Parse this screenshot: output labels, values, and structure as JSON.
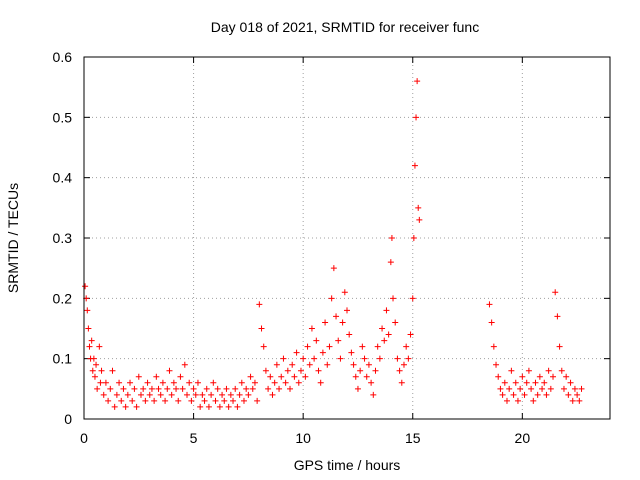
{
  "chart_data": {
    "type": "scatter",
    "title": "Day 018 of 2021, SRMTID for receiver func",
    "xlabel": "GPS time / hours",
    "ylabel": "SRMTID / TECUs",
    "xlim": [
      0,
      24
    ],
    "ylim": [
      0,
      0.6
    ],
    "xticks": [
      0,
      5,
      10,
      15,
      20
    ],
    "yticks": [
      0,
      0.1,
      0.2,
      0.3,
      0.4,
      0.5,
      0.6
    ],
    "xtick_labels": [
      "0",
      "5",
      "10",
      "15",
      "20"
    ],
    "ytick_labels": [
      "0",
      "0.1",
      "0.2",
      "0.3",
      "0.4",
      "0.5",
      "0.6"
    ],
    "grid": true,
    "marker": "+",
    "color": "#ff0000",
    "series": [
      {
        "name": "SRMTID",
        "points": [
          [
            0.05,
            0.22
          ],
          [
            0.1,
            0.2
          ],
          [
            0.15,
            0.18
          ],
          [
            0.2,
            0.15
          ],
          [
            0.25,
            0.12
          ],
          [
            0.3,
            0.1
          ],
          [
            0.35,
            0.13
          ],
          [
            0.4,
            0.08
          ],
          [
            0.45,
            0.1
          ],
          [
            0.5,
            0.07
          ],
          [
            0.55,
            0.09
          ],
          [
            0.6,
            0.05
          ],
          [
            0.7,
            0.12
          ],
          [
            0.75,
            0.06
          ],
          [
            0.8,
            0.08
          ],
          [
            0.9,
            0.04
          ],
          [
            1.0,
            0.06
          ],
          [
            1.1,
            0.03
          ],
          [
            1.2,
            0.05
          ],
          [
            1.3,
            0.08
          ],
          [
            1.4,
            0.02
          ],
          [
            1.5,
            0.04
          ],
          [
            1.6,
            0.06
          ],
          [
            1.7,
            0.03
          ],
          [
            1.8,
            0.05
          ],
          [
            1.9,
            0.02
          ],
          [
            2.0,
            0.04
          ],
          [
            2.1,
            0.06
          ],
          [
            2.2,
            0.03
          ],
          [
            2.3,
            0.05
          ],
          [
            2.4,
            0.02
          ],
          [
            2.5,
            0.07
          ],
          [
            2.6,
            0.04
          ],
          [
            2.7,
            0.05
          ],
          [
            2.8,
            0.03
          ],
          [
            2.9,
            0.06
          ],
          [
            3.0,
            0.04
          ],
          [
            3.1,
            0.05
          ],
          [
            3.2,
            0.03
          ],
          [
            3.3,
            0.07
          ],
          [
            3.4,
            0.05
          ],
          [
            3.5,
            0.04
          ],
          [
            3.6,
            0.06
          ],
          [
            3.7,
            0.03
          ],
          [
            3.8,
            0.05
          ],
          [
            3.9,
            0.08
          ],
          [
            4.0,
            0.04
          ],
          [
            4.1,
            0.06
          ],
          [
            4.2,
            0.05
          ],
          [
            4.3,
            0.03
          ],
          [
            4.4,
            0.07
          ],
          [
            4.5,
            0.05
          ],
          [
            4.6,
            0.09
          ],
          [
            4.7,
            0.04
          ],
          [
            4.8,
            0.06
          ],
          [
            4.9,
            0.03
          ],
          [
            5.0,
            0.05
          ],
          [
            5.1,
            0.04
          ],
          [
            5.2,
            0.06
          ],
          [
            5.3,
            0.02
          ],
          [
            5.4,
            0.04
          ],
          [
            5.5,
            0.03
          ],
          [
            5.6,
            0.05
          ],
          [
            5.7,
            0.02
          ],
          [
            5.8,
            0.04
          ],
          [
            5.9,
            0.06
          ],
          [
            6.0,
            0.03
          ],
          [
            6.1,
            0.05
          ],
          [
            6.2,
            0.02
          ],
          [
            6.3,
            0.04
          ],
          [
            6.4,
            0.03
          ],
          [
            6.5,
            0.05
          ],
          [
            6.6,
            0.02
          ],
          [
            6.7,
            0.04
          ],
          [
            6.8,
            0.03
          ],
          [
            6.9,
            0.05
          ],
          [
            7.0,
            0.02
          ],
          [
            7.1,
            0.04
          ],
          [
            7.2,
            0.06
          ],
          [
            7.3,
            0.03
          ],
          [
            7.4,
            0.05
          ],
          [
            7.5,
            0.04
          ],
          [
            7.6,
            0.07
          ],
          [
            7.7,
            0.05
          ],
          [
            7.8,
            0.06
          ],
          [
            7.9,
            0.03
          ],
          [
            8.0,
            0.19
          ],
          [
            8.1,
            0.15
          ],
          [
            8.2,
            0.12
          ],
          [
            8.3,
            0.08
          ],
          [
            8.4,
            0.05
          ],
          [
            8.5,
            0.07
          ],
          [
            8.6,
            0.04
          ],
          [
            8.7,
            0.06
          ],
          [
            8.8,
            0.09
          ],
          [
            8.9,
            0.05
          ],
          [
            9.0,
            0.07
          ],
          [
            9.1,
            0.1
          ],
          [
            9.2,
            0.06
          ],
          [
            9.3,
            0.08
          ],
          [
            9.4,
            0.05
          ],
          [
            9.5,
            0.09
          ],
          [
            9.6,
            0.07
          ],
          [
            9.7,
            0.11
          ],
          [
            9.8,
            0.06
          ],
          [
            9.9,
            0.08
          ],
          [
            10.0,
            0.1
          ],
          [
            10.1,
            0.07
          ],
          [
            10.2,
            0.12
          ],
          [
            10.3,
            0.09
          ],
          [
            10.4,
            0.15
          ],
          [
            10.5,
            0.1
          ],
          [
            10.6,
            0.13
          ],
          [
            10.7,
            0.08
          ],
          [
            10.8,
            0.06
          ],
          [
            10.9,
            0.11
          ],
          [
            11.0,
            0.16
          ],
          [
            11.1,
            0.09
          ],
          [
            11.2,
            0.12
          ],
          [
            11.3,
            0.2
          ],
          [
            11.4,
            0.25
          ],
          [
            11.5,
            0.17
          ],
          [
            11.6,
            0.13
          ],
          [
            11.7,
            0.1
          ],
          [
            11.8,
            0.16
          ],
          [
            11.9,
            0.21
          ],
          [
            12.0,
            0.18
          ],
          [
            12.1,
            0.14
          ],
          [
            12.2,
            0.11
          ],
          [
            12.3,
            0.09
          ],
          [
            12.4,
            0.07
          ],
          [
            12.5,
            0.05
          ],
          [
            12.6,
            0.08
          ],
          [
            12.7,
            0.12
          ],
          [
            12.8,
            0.1
          ],
          [
            12.9,
            0.07
          ],
          [
            13.0,
            0.09
          ],
          [
            13.1,
            0.06
          ],
          [
            13.2,
            0.04
          ],
          [
            13.3,
            0.08
          ],
          [
            13.4,
            0.12
          ],
          [
            13.5,
            0.1
          ],
          [
            13.6,
            0.15
          ],
          [
            13.7,
            0.13
          ],
          [
            13.8,
            0.18
          ],
          [
            13.9,
            0.14
          ],
          [
            14.0,
            0.26
          ],
          [
            14.05,
            0.3
          ],
          [
            14.1,
            0.2
          ],
          [
            14.2,
            0.16
          ],
          [
            14.3,
            0.1
          ],
          [
            14.4,
            0.08
          ],
          [
            14.5,
            0.06
          ],
          [
            14.6,
            0.09
          ],
          [
            14.7,
            0.12
          ],
          [
            14.8,
            0.1
          ],
          [
            14.9,
            0.14
          ],
          [
            15.0,
            0.2
          ],
          [
            15.05,
            0.3
          ],
          [
            15.1,
            0.42
          ],
          [
            15.15,
            0.5
          ],
          [
            15.2,
            0.56
          ],
          [
            15.25,
            0.35
          ],
          [
            15.3,
            0.33
          ],
          [
            18.5,
            0.19
          ],
          [
            18.6,
            0.16
          ],
          [
            18.7,
            0.12
          ],
          [
            18.8,
            0.09
          ],
          [
            18.9,
            0.07
          ],
          [
            19.0,
            0.05
          ],
          [
            19.1,
            0.04
          ],
          [
            19.2,
            0.06
          ],
          [
            19.3,
            0.03
          ],
          [
            19.4,
            0.05
          ],
          [
            19.5,
            0.08
          ],
          [
            19.6,
            0.04
          ],
          [
            19.7,
            0.06
          ],
          [
            19.8,
            0.03
          ],
          [
            19.9,
            0.05
          ],
          [
            20.0,
            0.07
          ],
          [
            20.1,
            0.04
          ],
          [
            20.2,
            0.06
          ],
          [
            20.3,
            0.08
          ],
          [
            20.4,
            0.05
          ],
          [
            20.5,
            0.03
          ],
          [
            20.6,
            0.06
          ],
          [
            20.7,
            0.04
          ],
          [
            20.8,
            0.07
          ],
          [
            20.9,
            0.05
          ],
          [
            21.0,
            0.06
          ],
          [
            21.1,
            0.04
          ],
          [
            21.2,
            0.08
          ],
          [
            21.3,
            0.05
          ],
          [
            21.4,
            0.07
          ],
          [
            21.5,
            0.21
          ],
          [
            21.6,
            0.17
          ],
          [
            21.7,
            0.12
          ],
          [
            21.8,
            0.08
          ],
          [
            21.9,
            0.05
          ],
          [
            22.0,
            0.07
          ],
          [
            22.1,
            0.04
          ],
          [
            22.2,
            0.06
          ],
          [
            22.3,
            0.03
          ],
          [
            22.4,
            0.05
          ],
          [
            22.5,
            0.04
          ],
          [
            22.6,
            0.03
          ],
          [
            22.7,
            0.05
          ]
        ]
      }
    ]
  }
}
